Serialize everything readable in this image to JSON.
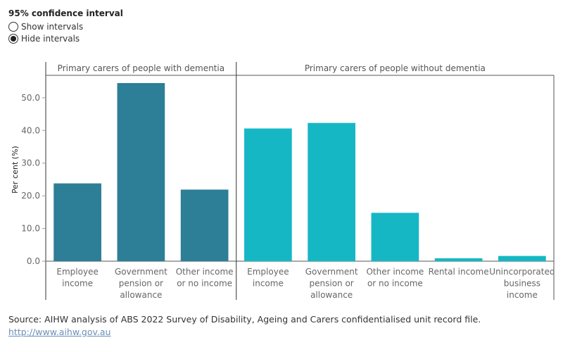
{
  "controls": {
    "title": "95% confidence interval",
    "options": [
      {
        "label": "Show intervals",
        "selected": false
      },
      {
        "label": "Hide intervals",
        "selected": true
      }
    ]
  },
  "chart_data": {
    "type": "bar",
    "ylabel": "Per cent (%)",
    "ylim": [
      0,
      56
    ],
    "yticks": [
      "0.0",
      "10.0",
      "20.0",
      "30.0",
      "40.0",
      "50.0"
    ],
    "grid": false,
    "panels": [
      {
        "title": "Primary carers of people with dementia",
        "color": "#2d7e97",
        "categories": [
          [
            "Employee",
            "income"
          ],
          [
            "Government",
            "pension or",
            "allowance"
          ],
          [
            "Other income",
            "or no income"
          ]
        ],
        "values": [
          23.8,
          54.5,
          21.9
        ]
      },
      {
        "title": "Primary carers of people without dementia",
        "color": "#16b7c4",
        "categories": [
          [
            "Employee",
            "income"
          ],
          [
            "Government",
            "pension or",
            "allowance"
          ],
          [
            "Other income",
            "or no income"
          ],
          [
            "Rental income"
          ],
          [
            "Unincorporated",
            "business",
            "income"
          ]
        ],
        "values": [
          40.6,
          42.3,
          14.8,
          0.9,
          1.6
        ]
      }
    ]
  },
  "footer": {
    "source": "Source: AIHW analysis of ABS 2022 Survey of Disability, Ageing and Carers confidentialised unit record file.",
    "link": "http://www.aihw.gov.au"
  }
}
